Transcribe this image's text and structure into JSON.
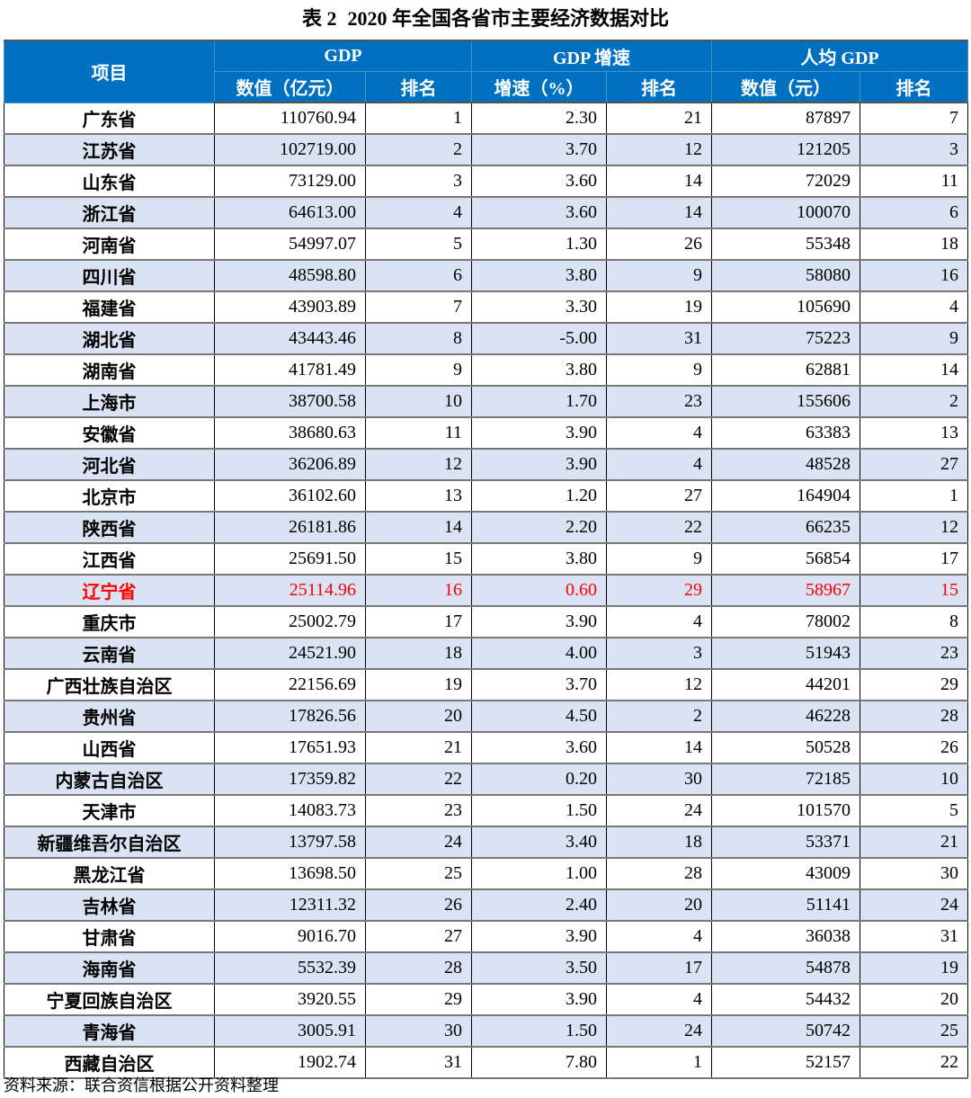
{
  "title": {
    "label": "表 2",
    "text": "2020 年全国各省市主要经济数据对比"
  },
  "header": {
    "item": "项目",
    "gdp": "GDP",
    "growth": "GDP 增速",
    "per_capita": "人均 GDP",
    "gdp_value": "数值（亿元）",
    "rank": "排名",
    "growth_value": "增速（%）",
    "pc_value": "数值（元）"
  },
  "highlight_color": "#ff0000",
  "header_color": "#0070C0",
  "stripe_color": "#DAE3F3",
  "rows": [
    [
      "广东省",
      "110760.94",
      "1",
      "2.30",
      "21",
      "87897",
      "7"
    ],
    [
      "江苏省",
      "102719.00",
      "2",
      "3.70",
      "12",
      "121205",
      "3"
    ],
    [
      "山东省",
      "73129.00",
      "3",
      "3.60",
      "14",
      "72029",
      "11"
    ],
    [
      "浙江省",
      "64613.00",
      "4",
      "3.60",
      "14",
      "100070",
      "6"
    ],
    [
      "河南省",
      "54997.07",
      "5",
      "1.30",
      "26",
      "55348",
      "18"
    ],
    [
      "四川省",
      "48598.80",
      "6",
      "3.80",
      "9",
      "58080",
      "16"
    ],
    [
      "福建省",
      "43903.89",
      "7",
      "3.30",
      "19",
      "105690",
      "4"
    ],
    [
      "湖北省",
      "43443.46",
      "8",
      "-5.00",
      "31",
      "75223",
      "9"
    ],
    [
      "湖南省",
      "41781.49",
      "9",
      "3.80",
      "9",
      "62881",
      "14"
    ],
    [
      "上海市",
      "38700.58",
      "10",
      "1.70",
      "23",
      "155606",
      "2"
    ],
    [
      "安徽省",
      "38680.63",
      "11",
      "3.90",
      "4",
      "63383",
      "13"
    ],
    [
      "河北省",
      "36206.89",
      "12",
      "3.90",
      "4",
      "48528",
      "27"
    ],
    [
      "北京市",
      "36102.60",
      "13",
      "1.20",
      "27",
      "164904",
      "1"
    ],
    [
      "陕西省",
      "26181.86",
      "14",
      "2.20",
      "22",
      "66235",
      "12"
    ],
    [
      "江西省",
      "25691.50",
      "15",
      "3.80",
      "9",
      "56854",
      "17"
    ],
    [
      "辽宁省",
      "25114.96",
      "16",
      "0.60",
      "29",
      "58967",
      "15"
    ],
    [
      "重庆市",
      "25002.79",
      "17",
      "3.90",
      "4",
      "78002",
      "8"
    ],
    [
      "云南省",
      "24521.90",
      "18",
      "4.00",
      "3",
      "51943",
      "23"
    ],
    [
      "广西壮族自治区",
      "22156.69",
      "19",
      "3.70",
      "12",
      "44201",
      "29"
    ],
    [
      "贵州省",
      "17826.56",
      "20",
      "4.50",
      "2",
      "46228",
      "28"
    ],
    [
      "山西省",
      "17651.93",
      "21",
      "3.60",
      "14",
      "50528",
      "26"
    ],
    [
      "内蒙古自治区",
      "17359.82",
      "22",
      "0.20",
      "30",
      "72185",
      "10"
    ],
    [
      "天津市",
      "14083.73",
      "23",
      "1.50",
      "24",
      "101570",
      "5"
    ],
    [
      "新疆维吾尔自治区",
      "13797.58",
      "24",
      "3.40",
      "18",
      "53371",
      "21"
    ],
    [
      "黑龙江省",
      "13698.50",
      "25",
      "1.00",
      "28",
      "43009",
      "30"
    ],
    [
      "吉林省",
      "12311.32",
      "26",
      "2.40",
      "20",
      "51141",
      "24"
    ],
    [
      "甘肃省",
      "9016.70",
      "27",
      "3.90",
      "4",
      "36038",
      "31"
    ],
    [
      "海南省",
      "5532.39",
      "28",
      "3.50",
      "17",
      "54878",
      "19"
    ],
    [
      "宁夏回族自治区",
      "3920.55",
      "29",
      "3.90",
      "4",
      "54432",
      "20"
    ],
    [
      "青海省",
      "3005.91",
      "30",
      "1.50",
      "24",
      "50742",
      "25"
    ],
    [
      "西藏自治区",
      "1902.74",
      "31",
      "7.80",
      "1",
      "52157",
      "22"
    ]
  ],
  "highlighted_row": "辽宁省",
  "footer": "资料来源：联合资信根据公开资料整理"
}
